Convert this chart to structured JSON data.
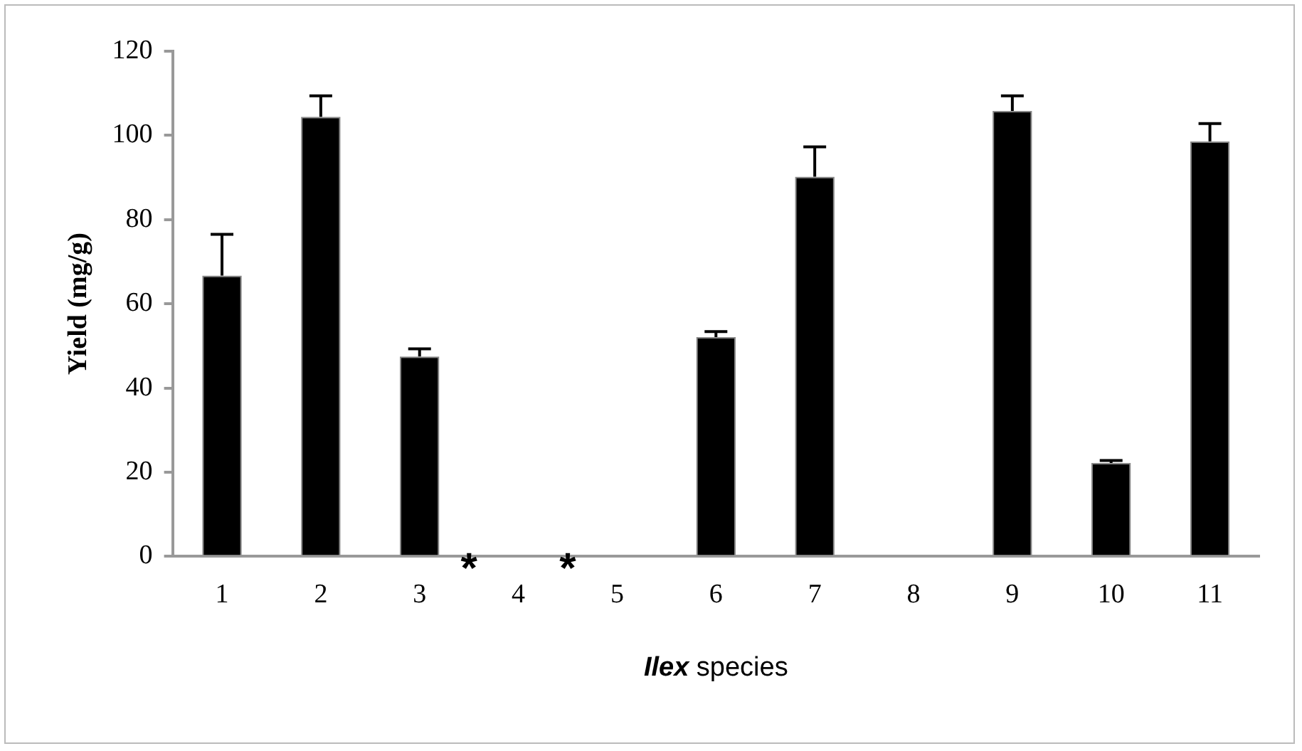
{
  "chart_data": {
    "type": "bar",
    "xlabel": "Ilex species",
    "ylabel": "Yield (mg/g)",
    "categories": [
      "1",
      "2",
      "3",
      "4",
      "5",
      "6",
      "7",
      "8",
      "9",
      "10",
      "11"
    ],
    "values": [
      66.7,
      104.4,
      47.5,
      0,
      0,
      52.1,
      90.2,
      0,
      105.8,
      22.2,
      98.6
    ],
    "errors": [
      [
        66.7,
        76.5
      ],
      [
        104.4,
        109.4
      ],
      [
        47.5,
        49.3
      ],
      null,
      null,
      [
        52.1,
        53.4
      ],
      [
        90.2,
        97.3
      ],
      null,
      [
        105.8,
        109.4
      ],
      [
        22.2,
        22.8
      ],
      [
        98.6,
        102.8
      ]
    ],
    "color": "#000000",
    "ylim": [
      0,
      120
    ],
    "yticks": [
      0,
      20,
      40,
      60,
      80,
      100,
      120
    ],
    "grid": false,
    "legend": false,
    "annotations": [
      "*",
      "*"
    ]
  }
}
